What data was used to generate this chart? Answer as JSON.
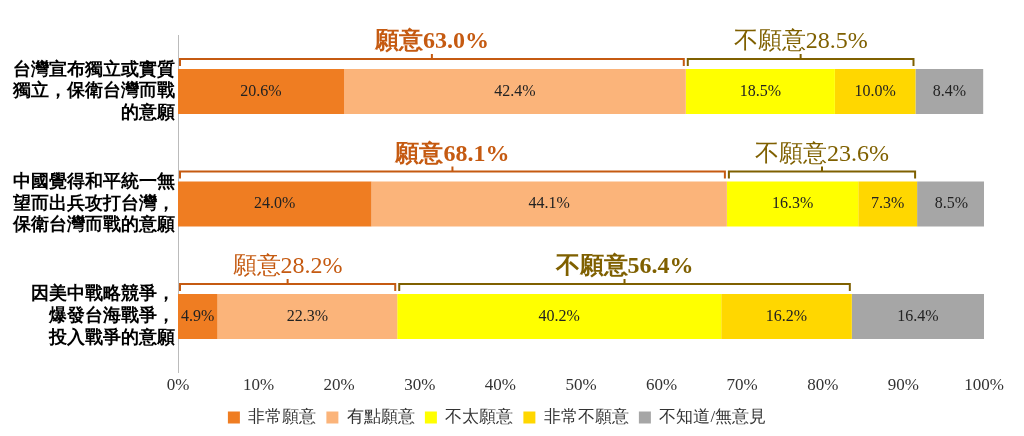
{
  "chart_data": {
    "type": "bar",
    "orientation": "horizontal",
    "stacked": true,
    "categories": [
      "台灣宣布獨立或實質獨立，保衛台灣而戰的意願",
      "中國覺得和平統一無望而出兵攻打台灣，保衛台灣而戰的意願",
      "因美中戰略競爭，爆發台海戰爭，投入戰爭的意願"
    ],
    "series": [
      {
        "name": "非常願意",
        "color": "#ef7d22",
        "values": [
          20.6,
          24.0,
          4.9
        ],
        "value_labels": [
          "20.6%",
          "24.0%",
          "4.9%"
        ]
      },
      {
        "name": "有點願意",
        "color": "#fbb47a",
        "values": [
          42.4,
          44.1,
          22.3
        ],
        "value_labels": [
          "42.4%",
          "44.1%",
          "22.3%"
        ]
      },
      {
        "name": "不太願意",
        "color": "#ffff00",
        "values": [
          18.5,
          16.3,
          40.2
        ],
        "value_labels": [
          "18.5%",
          "16.3%",
          "40.2%"
        ]
      },
      {
        "name": "非常不願意",
        "color": "#ffd700",
        "values": [
          10.0,
          7.3,
          16.2
        ],
        "value_labels": [
          "10.0%",
          "7.3%",
          "16.2%"
        ]
      },
      {
        "name": "不知道/無意見",
        "color": "#a6a6a6",
        "values": [
          8.4,
          8.5,
          16.4
        ],
        "value_labels": [
          "8.4%",
          "8.5%",
          "16.4%"
        ]
      }
    ],
    "xlim": [
      0,
      100
    ],
    "xticks": [
      {
        "value": 0,
        "label": "0%"
      },
      {
        "value": 10,
        "label": "10%"
      },
      {
        "value": 20,
        "label": "20%"
      },
      {
        "value": 30,
        "label": "30%"
      },
      {
        "value": 40,
        "label": "40%"
      },
      {
        "value": 50,
        "label": "50%"
      },
      {
        "value": 60,
        "label": "60%"
      },
      {
        "value": 70,
        "label": "70%"
      },
      {
        "value": 80,
        "label": "80%"
      },
      {
        "value": 90,
        "label": "90%"
      },
      {
        "value": 100,
        "label": "100%"
      }
    ],
    "grid": false,
    "legend": "bottom",
    "annotations": [
      "願意63.0%",
      "不願意28.5%",
      "願意68.1%",
      "不願意23.6%",
      "願意28.2%",
      "不願意56.4%"
    ]
  }
}
